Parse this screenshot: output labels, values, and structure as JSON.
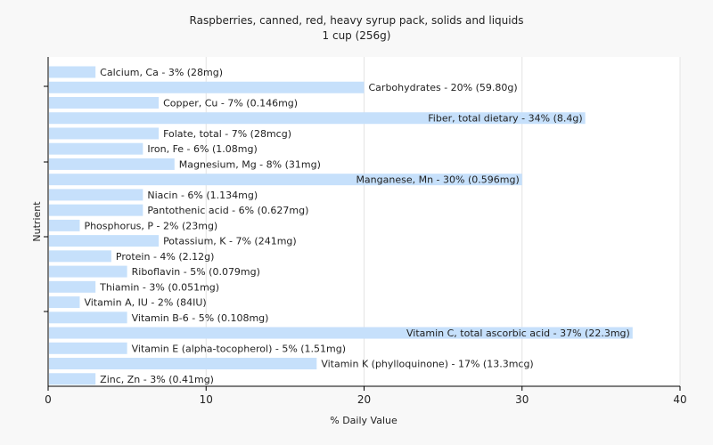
{
  "chart_data": {
    "type": "bar",
    "orientation": "horizontal",
    "title": "Raspberries, canned, red, heavy syrup pack, solids and liquids",
    "subtitle": "1 cup (256g)",
    "xlabel": "% Daily Value",
    "ylabel": "Nutrient",
    "xlim": [
      0,
      40
    ],
    "xticks": [
      "0",
      "10",
      "20",
      "30",
      "40"
    ],
    "grid": "vertical",
    "bar_color": "#c6e0fb",
    "categories": [
      "Calcium, Ca",
      "Carbohydrates",
      "Copper, Cu",
      "Fiber, total dietary",
      "Folate, total",
      "Iron, Fe",
      "Magnesium, Mg",
      "Manganese, Mn",
      "Niacin",
      "Pantothenic acid",
      "Phosphorus, P",
      "Potassium, K",
      "Protein",
      "Riboflavin",
      "Thiamin",
      "Vitamin A, IU",
      "Vitamin B-6",
      "Vitamin C, total ascorbic acid",
      "Vitamin E (alpha-tocopherol)",
      "Vitamin K (phylloquinone)",
      "Zinc, Zn"
    ],
    "values": [
      3,
      20,
      7,
      34,
      7,
      6,
      8,
      30,
      6,
      6,
      2,
      7,
      4,
      5,
      3,
      2,
      5,
      37,
      5,
      17,
      3
    ],
    "labels": [
      "Calcium, Ca - 3% (28mg)",
      "Carbohydrates - 20% (59.80g)",
      "Copper, Cu - 7% (0.146mg)",
      "Fiber, total dietary - 34% (8.4g)",
      "Folate, total - 7% (28mcg)",
      "Iron, Fe - 6% (1.08mg)",
      "Magnesium, Mg - 8% (31mg)",
      "Manganese, Mn - 30% (0.596mg)",
      "Niacin - 6% (1.134mg)",
      "Pantothenic acid - 6% (0.627mg)",
      "Phosphorus, P - 2% (23mg)",
      "Potassium, K - 7% (241mg)",
      "Protein - 4% (2.12g)",
      "Riboflavin - 5% (0.079mg)",
      "Thiamin - 3% (0.051mg)",
      "Vitamin A, IU - 2% (84IU)",
      "Vitamin B-6 - 5% (0.108mg)",
      "Vitamin C, total ascorbic acid - 37% (22.3mg)",
      "Vitamin E (alpha-tocopherol) - 5% (1.51mg)",
      "Vitamin K (phylloquinone) - 17% (13.3mcg)",
      "Zinc, Zn - 3% (0.41mg)"
    ]
  }
}
